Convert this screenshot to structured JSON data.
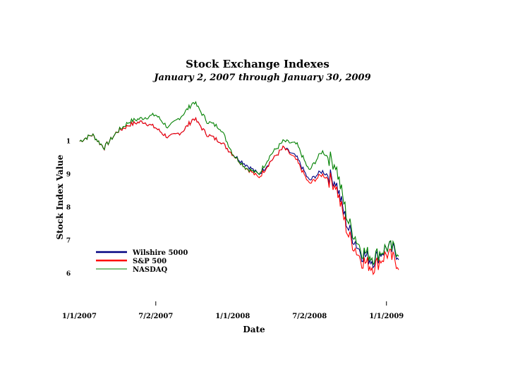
{
  "chart_data": {
    "type": "line",
    "title": "Stock Exchange Indexes",
    "subtitle": "January 2, 2007 through January 30, 2009",
    "xlabel": "Date",
    "ylabel": "Stock Index Value",
    "x_ticks": [
      "1/1/2007",
      "7/2/2007",
      "1/1/2008",
      "7/2/2008",
      "1/1/2009"
    ],
    "y_ticks": [
      "1",
      "9",
      "8",
      "7",
      "6"
    ],
    "ylim": [
      0.55,
      1.15
    ],
    "legend_position": "bottom-left",
    "grid": false,
    "x": [
      "2007-01-02",
      "2007-02-01",
      "2007-03-01",
      "2007-04-02",
      "2007-05-01",
      "2007-06-01",
      "2007-07-02",
      "2007-08-01",
      "2007-09-04",
      "2007-10-01",
      "2007-11-01",
      "2007-12-03",
      "2008-01-02",
      "2008-02-01",
      "2008-03-03",
      "2008-04-01",
      "2008-05-01",
      "2008-06-02",
      "2008-07-01",
      "2008-08-01",
      "2008-09-02",
      "2008-10-01",
      "2008-11-03",
      "2008-12-01",
      "2009-01-02",
      "2009-01-30"
    ],
    "series": [
      {
        "name": "Wilshire 5000",
        "color": "#000080",
        "values": [
          1.0,
          1.02,
          0.98,
          1.03,
          1.05,
          1.06,
          1.04,
          1.01,
          1.03,
          1.07,
          1.02,
          1.0,
          0.96,
          0.93,
          0.9,
          0.94,
          0.98,
          0.95,
          0.88,
          0.91,
          0.88,
          0.74,
          0.66,
          0.64,
          0.68,
          0.66
        ]
      },
      {
        "name": "S&P 500",
        "color": "#ff0000",
        "values": [
          1.0,
          1.02,
          0.98,
          1.03,
          1.05,
          1.06,
          1.04,
          1.01,
          1.03,
          1.07,
          1.02,
          1.0,
          0.96,
          0.92,
          0.89,
          0.94,
          0.98,
          0.94,
          0.87,
          0.9,
          0.87,
          0.72,
          0.64,
          0.62,
          0.66,
          0.63
        ]
      },
      {
        "name": "NASDAQ",
        "color": "#008000",
        "values": [
          1.0,
          1.02,
          0.98,
          1.03,
          1.06,
          1.07,
          1.08,
          1.04,
          1.08,
          1.12,
          1.06,
          1.04,
          0.96,
          0.92,
          0.9,
          0.96,
          1.0,
          0.99,
          0.91,
          0.97,
          0.93,
          0.76,
          0.67,
          0.65,
          0.68,
          0.67
        ]
      }
    ]
  }
}
